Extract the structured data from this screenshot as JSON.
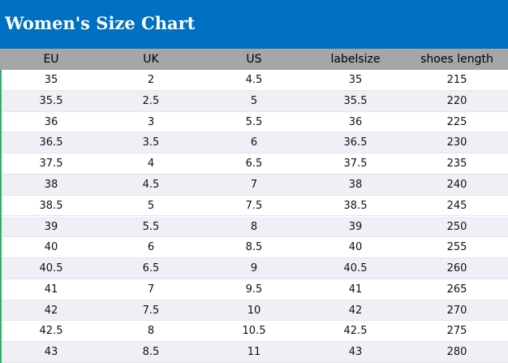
{
  "header": {
    "title": "Women's Size Chart"
  },
  "table": {
    "columns": [
      "EU",
      "UK",
      "US",
      "labelsize",
      "shoes length"
    ],
    "rows": [
      [
        35,
        2,
        4.5,
        35,
        215
      ],
      [
        35.5,
        2.5,
        5,
        35.5,
        220
      ],
      [
        36,
        3,
        5.5,
        36,
        225
      ],
      [
        36.5,
        3.5,
        6,
        36.5,
        230
      ],
      [
        37.5,
        4,
        6.5,
        37.5,
        235
      ],
      [
        38,
        4.5,
        7,
        38,
        240
      ],
      [
        38.5,
        5,
        7.5,
        38.5,
        245
      ],
      [
        39,
        5.5,
        8,
        39,
        250
      ],
      [
        40,
        6,
        8.5,
        40,
        255
      ],
      [
        40.5,
        6.5,
        9,
        40.5,
        260
      ],
      [
        41,
        7,
        9.5,
        41,
        265
      ],
      [
        42,
        7.5,
        10,
        42,
        270
      ],
      [
        42.5,
        8,
        10.5,
        42.5,
        275
      ],
      [
        43,
        8.5,
        11,
        43,
        280
      ]
    ]
  }
}
